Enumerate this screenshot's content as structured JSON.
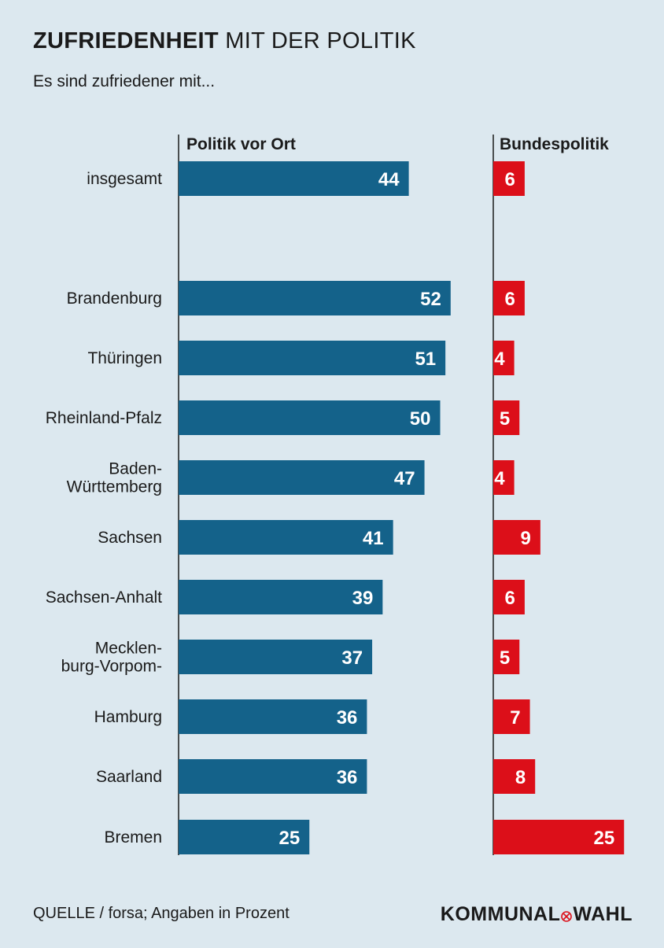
{
  "header": {
    "title_bold": "ZUFRIEDENHEIT",
    "title_rest": " MIT DER POLITIK",
    "subtitle": "Es sind zufriedener mit..."
  },
  "footer": {
    "source": "QUELLE / forsa; Angaben in Prozent",
    "logo": "KOMMUNALWAHL"
  },
  "colors": {
    "local": "#14628a",
    "federal": "#dc0f19",
    "axis": "#1a1a1a"
  },
  "chart_data": {
    "type": "bar",
    "orientation": "horizontal",
    "title": "ZUFRIEDENHEIT MIT DER POLITIK",
    "subtitle": "Es sind zufriedener mit...",
    "unit": "Prozent",
    "series": [
      {
        "name": "Politik vor Ort",
        "values": [
          44,
          52,
          51,
          50,
          47,
          41,
          39,
          37,
          36,
          36,
          25
        ]
      },
      {
        "name": "Bundespolitik",
        "values": [
          6,
          6,
          4,
          5,
          4,
          9,
          6,
          5,
          7,
          8,
          25
        ]
      }
    ],
    "categories": [
      [
        "insgesamt"
      ],
      [
        "Brandenburg"
      ],
      [
        "Thüringen"
      ],
      [
        "Rheinland-Pfalz"
      ],
      [
        "Baden-",
        "Württemberg"
      ],
      [
        "Sachsen"
      ],
      [
        "Sachsen-Anhalt"
      ],
      [
        "Mecklen-",
        "burg-Vorpom-"
      ],
      [
        "Hamburg"
      ],
      [
        "Saarland"
      ],
      [
        "Bremen"
      ]
    ],
    "grid": false,
    "data_labels": true
  }
}
